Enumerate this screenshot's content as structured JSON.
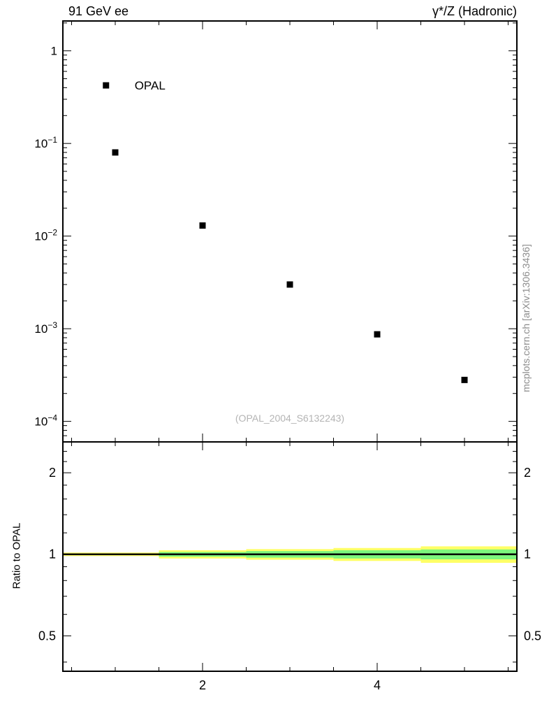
{
  "header": {
    "left_title": "91 GeV ee",
    "right_title": "γ*/Z (Hadronic)"
  },
  "watermark": {
    "text": "(OPAL_2004_S6132243)",
    "color": "#b4b4b4"
  },
  "side_text": {
    "text": "mcplots.cern.ch [arXiv:1306.3436]",
    "color": "#8c8c8c"
  },
  "chart_data": [
    {
      "name": "main-panel",
      "type": "scatter",
      "title": "91 GeV ee",
      "xlabel": "",
      "ylabel": "",
      "yscale": "log",
      "xlim": [
        0.4,
        5.6
      ],
      "ylim": [
        6e-05,
        2.1
      ],
      "ytick_exponents": [
        0,
        -1,
        -2,
        -3,
        -4
      ],
      "xticks_major": [
        2,
        4
      ],
      "grid": false,
      "legend": {
        "label": "OPAL",
        "position": "top-left"
      },
      "series": [
        {
          "name": "OPAL",
          "marker": "square",
          "color": "#000000",
          "x": [
            1,
            2,
            3,
            4,
            5
          ],
          "y": [
            0.08,
            0.013,
            0.003,
            0.00087,
            0.00028
          ]
        }
      ]
    },
    {
      "name": "ratio-panel",
      "type": "band",
      "ylabel": "Ratio to OPAL",
      "yscale": "log",
      "xlim": [
        0.4,
        5.6
      ],
      "ylim": [
        0.37,
        2.6
      ],
      "yticks": [
        0.5,
        1,
        2
      ],
      "ytick_minor": [
        0.4,
        0.6,
        0.7,
        0.8,
        0.9,
        1.2,
        1.4,
        1.6,
        1.8,
        2.2,
        2.4
      ],
      "xticks_major": [
        2,
        4
      ],
      "xtick_labels": [
        "2",
        "4"
      ],
      "reference_line": 1,
      "band_colors": {
        "outer": "#ffff66",
        "inner": "#7df57d"
      },
      "bands": [
        {
          "x0": 0.4,
          "x1": 1.5,
          "outer": [
            0.985,
            1.015
          ],
          "inner": [
            0.993,
            1.007
          ]
        },
        {
          "x0": 1.5,
          "x1": 2.5,
          "outer": [
            0.965,
            1.035
          ],
          "inner": [
            0.98,
            1.02
          ]
        },
        {
          "x0": 2.5,
          "x1": 3.5,
          "outer": [
            0.955,
            1.045
          ],
          "inner": [
            0.972,
            1.028
          ]
        },
        {
          "x0": 3.5,
          "x1": 4.5,
          "outer": [
            0.945,
            1.055
          ],
          "inner": [
            0.965,
            1.035
          ]
        },
        {
          "x0": 4.5,
          "x1": 5.6,
          "outer": [
            0.93,
            1.07
          ],
          "inner": [
            0.958,
            1.042
          ]
        }
      ]
    }
  ]
}
